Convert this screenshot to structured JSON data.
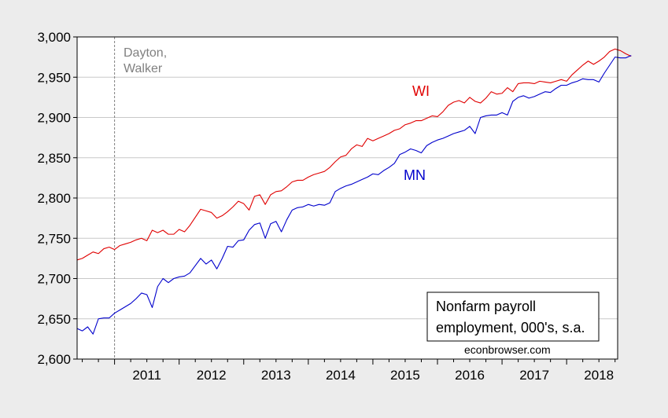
{
  "chart_data": {
    "type": "line",
    "title": "",
    "xlabel": "",
    "ylabel": "",
    "xlim": [
      2010.42,
      2018.79
    ],
    "ylim": [
      2600,
      3000
    ],
    "y_ticks": [
      2600,
      2650,
      2700,
      2750,
      2800,
      2850,
      2900,
      2950,
      3000
    ],
    "y_tick_labels": [
      "2,600",
      "2,650",
      "2,700",
      "2,750",
      "2,800",
      "2,850",
      "2,900",
      "2,950",
      "3,000"
    ],
    "x_tick_labels": [
      "2011",
      "2012",
      "2013",
      "2014",
      "2015",
      "2016",
      "2017",
      "2018"
    ],
    "grid": true,
    "annotations": {
      "event_line_x": 2011.0,
      "event_label_line1": "Dayton,",
      "event_label_line2": "Walker",
      "wi_label": "WI",
      "mn_label": "MN",
      "box_line1": "Nonfarm payroll",
      "box_line2": "employment, 000's, s.a.",
      "source": "econbrowser.com"
    },
    "colors": {
      "WI": "#e00000",
      "MN": "#0000cc",
      "event_line": "#808080",
      "event_label": "#808080"
    },
    "series": [
      {
        "name": "WI",
        "start": "2010-06",
        "values": [
          2723,
          2725,
          2729,
          2733,
          2731,
          2737,
          2739,
          2736,
          2741,
          2743,
          2745,
          2748,
          2750,
          2747,
          2760,
          2757,
          2760,
          2755,
          2755,
          2761,
          2758,
          2766,
          2776,
          2786,
          2784,
          2782,
          2775,
          2778,
          2783,
          2789,
          2796,
          2793,
          2785,
          2802,
          2804,
          2792,
          2804,
          2808,
          2809,
          2814,
          2820,
          2822,
          2822,
          2826,
          2829,
          2831,
          2833,
          2838,
          2845,
          2851,
          2853,
          2861,
          2866,
          2864,
          2874,
          2871,
          2874,
          2877,
          2880,
          2884,
          2886,
          2891,
          2893,
          2896,
          2896,
          2899,
          2902,
          2901,
          2907,
          2915,
          2919,
          2921,
          2918,
          2925,
          2920,
          2918,
          2924,
          2932,
          2929,
          2930,
          2937,
          2932,
          2942,
          2943,
          2943,
          2942,
          2945,
          2944,
          2943,
          2945,
          2947,
          2945,
          2953,
          2959,
          2965,
          2970,
          2966,
          2970,
          2975,
          2982,
          2985,
          2983,
          2979,
          2976
        ]
      },
      {
        "name": "MN",
        "start": "2010-06",
        "values": [
          2638,
          2635,
          2640,
          2631,
          2650,
          2651,
          2651,
          2657,
          2661,
          2665,
          2669,
          2675,
          2682,
          2680,
          2664,
          2690,
          2700,
          2695,
          2700,
          2702,
          2703,
          2707,
          2716,
          2725,
          2718,
          2723,
          2712,
          2725,
          2740,
          2739,
          2747,
          2748,
          2760,
          2767,
          2769,
          2750,
          2768,
          2771,
          2758,
          2773,
          2785,
          2788,
          2789,
          2792,
          2790,
          2792,
          2791,
          2794,
          2808,
          2812,
          2815,
          2817,
          2820,
          2823,
          2826,
          2830,
          2829,
          2834,
          2838,
          2843,
          2854,
          2857,
          2861,
          2859,
          2856,
          2865,
          2869,
          2872,
          2874,
          2877,
          2880,
          2882,
          2884,
          2889,
          2880,
          2900,
          2902,
          2903,
          2903,
          2906,
          2903,
          2920,
          2925,
          2927,
          2924,
          2926,
          2929,
          2932,
          2931,
          2936,
          2940,
          2940,
          2943,
          2945,
          2948,
          2947,
          2947,
          2944,
          2955,
          2965,
          2975,
          2974,
          2974,
          2977
        ]
      }
    ]
  }
}
